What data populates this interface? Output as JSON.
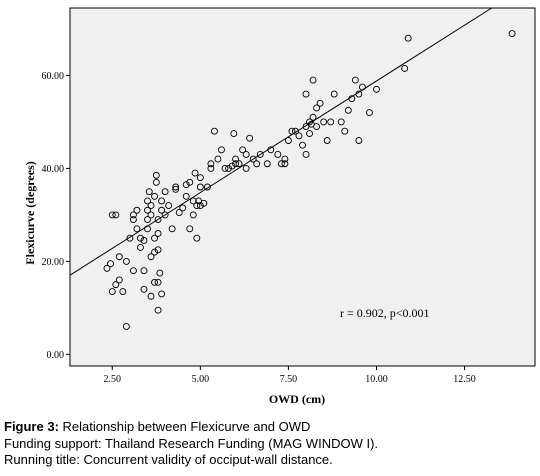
{
  "chart_data": {
    "type": "scatter",
    "xlabel": "OWD (cm)",
    "ylabel": "Flexicurve (degrees)",
    "xlim": [
      1.3,
      14.5
    ],
    "ylim": [
      -2.5,
      74.5
    ],
    "xticks": [
      "2.50",
      "5.00",
      "7.50",
      "10.00",
      "12.50"
    ],
    "yticks": [
      "0.00",
      "20.00",
      "40.00",
      "60.00"
    ],
    "grid": false,
    "annotation": "r = 0.902, p<0.001",
    "fit_line": {
      "intercept": 10.8,
      "slope": 4.8
    },
    "points": [
      [
        2.35,
        18.5
      ],
      [
        2.45,
        19.5
      ],
      [
        2.5,
        30
      ],
      [
        2.6,
        30
      ],
      [
        2.5,
        13.5
      ],
      [
        2.6,
        15
      ],
      [
        2.7,
        16
      ],
      [
        2.7,
        21
      ],
      [
        2.8,
        13.5
      ],
      [
        2.9,
        20
      ],
      [
        2.9,
        6
      ],
      [
        3.0,
        25
      ],
      [
        3.1,
        30
      ],
      [
        3.1,
        29
      ],
      [
        3.1,
        18
      ],
      [
        3.2,
        27
      ],
      [
        3.2,
        31
      ],
      [
        3.3,
        23
      ],
      [
        3.3,
        25
      ],
      [
        3.4,
        24.5
      ],
      [
        3.4,
        18
      ],
      [
        3.4,
        14
      ],
      [
        3.5,
        27
      ],
      [
        3.5,
        29
      ],
      [
        3.5,
        31
      ],
      [
        3.5,
        33
      ],
      [
        3.55,
        35
      ],
      [
        3.6,
        21
      ],
      [
        3.6,
        30
      ],
      [
        3.6,
        32
      ],
      [
        3.6,
        12.5
      ],
      [
        3.7,
        22
      ],
      [
        3.7,
        25
      ],
      [
        3.7,
        34
      ],
      [
        3.75,
        37
      ],
      [
        3.75,
        38.5
      ],
      [
        3.8,
        26
      ],
      [
        3.8,
        29
      ],
      [
        3.8,
        15.5
      ],
      [
        3.8,
        9.5
      ],
      [
        3.8,
        22.5
      ],
      [
        3.85,
        17.5
      ],
      [
        3.9,
        13
      ],
      [
        3.7,
        15.5
      ],
      [
        3.9,
        31
      ],
      [
        3.9,
        33
      ],
      [
        4.0,
        30
      ],
      [
        4.0,
        35
      ],
      [
        4.1,
        32
      ],
      [
        4.2,
        27
      ],
      [
        4.3,
        35.5
      ],
      [
        4.3,
        36
      ],
      [
        4.4,
        30.5
      ],
      [
        4.5,
        31.5
      ],
      [
        4.6,
        34
      ],
      [
        4.7,
        37
      ],
      [
        4.7,
        27
      ],
      [
        4.8,
        30
      ],
      [
        4.8,
        33
      ],
      [
        4.85,
        39
      ],
      [
        4.9,
        25
      ],
      [
        4.9,
        32
      ],
      [
        5.0,
        32
      ],
      [
        5.0,
        36
      ],
      [
        5.0,
        38
      ],
      [
        5.1,
        32.5
      ],
      [
        5.2,
        36
      ],
      [
        5.3,
        40
      ],
      [
        5.3,
        41
      ],
      [
        5.5,
        42
      ],
      [
        5.6,
        44
      ],
      [
        5.7,
        40
      ],
      [
        5.8,
        40
      ],
      [
        5.9,
        40.5
      ],
      [
        6.0,
        41
      ],
      [
        6.0,
        42
      ],
      [
        6.1,
        41
      ],
      [
        5.95,
        47.5
      ],
      [
        6.2,
        44
      ],
      [
        6.3,
        40
      ],
      [
        6.3,
        43
      ],
      [
        6.4,
        46.5
      ],
      [
        6.5,
        42
      ],
      [
        6.6,
        41
      ],
      [
        6.7,
        43
      ],
      [
        6.9,
        41
      ],
      [
        7.0,
        44
      ],
      [
        7.2,
        43
      ],
      [
        7.3,
        41
      ],
      [
        7.4,
        42
      ],
      [
        7.4,
        41
      ],
      [
        7.5,
        46
      ],
      [
        7.6,
        48
      ],
      [
        7.7,
        48
      ],
      [
        7.8,
        47
      ],
      [
        7.9,
        45
      ],
      [
        8.0,
        43
      ],
      [
        8.0,
        49
      ],
      [
        8.0,
        56
      ],
      [
        8.1,
        47.5
      ],
      [
        8.1,
        50
      ],
      [
        8.2,
        51
      ],
      [
        8.2,
        59
      ],
      [
        8.3,
        49
      ],
      [
        8.3,
        53
      ],
      [
        8.4,
        54
      ],
      [
        8.5,
        50
      ],
      [
        8.6,
        46
      ],
      [
        8.7,
        50
      ],
      [
        8.8,
        56
      ],
      [
        9.0,
        50
      ],
      [
        9.1,
        48
      ],
      [
        9.2,
        52.5
      ],
      [
        9.3,
        55
      ],
      [
        9.4,
        59
      ],
      [
        9.5,
        46
      ],
      [
        9.5,
        56
      ],
      [
        9.6,
        57.5
      ],
      [
        9.8,
        52
      ],
      [
        10.0,
        57
      ],
      [
        10.8,
        61.5
      ],
      [
        10.9,
        68
      ],
      [
        13.85,
        69
      ],
      [
        5.4,
        48
      ],
      [
        4.6,
        36.5
      ],
      [
        4.95,
        33
      ],
      [
        8.15,
        49.5
      ]
    ]
  },
  "caption": {
    "figure_label": "Figure 3:",
    "figure_text": " Relationship between Flexicurve and OWD",
    "funding": "Funding support: Thailand Research Funding (MAG WINDOW I).",
    "running_title": "Running title: Concurrent validity of occiput-wall distance."
  }
}
